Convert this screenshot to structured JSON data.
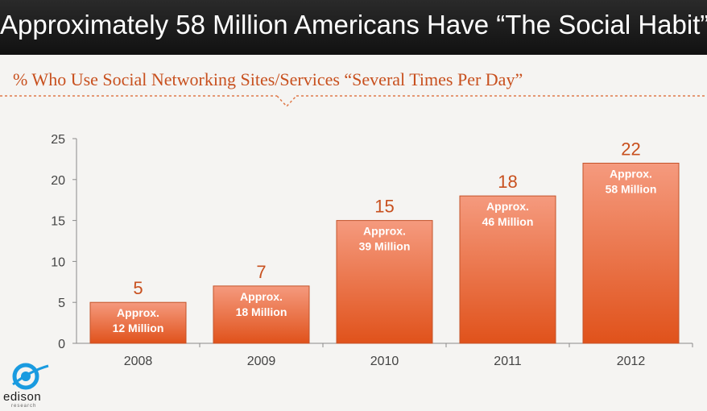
{
  "header": {
    "title": "Approximately 58 Million Americans Have “The Social Habit”"
  },
  "subtitle": "% Who Use Social Networking Sites/Services “Several Times Per Day”",
  "logo": {
    "name": "edison",
    "sub": "research"
  },
  "colors": {
    "bar_top": "#f59a7e",
    "bar_bottom": "#e0521b",
    "value_label": "#c8501e",
    "accent": "#e07a4a"
  },
  "chart_data": {
    "type": "bar",
    "categories": [
      "2008",
      "2009",
      "2010",
      "2011",
      "2012"
    ],
    "values": [
      5,
      7,
      15,
      18,
      22
    ],
    "bar_labels": [
      [
        "Approx.",
        "12 Million"
      ],
      [
        "Approx.",
        "18 Million"
      ],
      [
        "Approx.",
        "39 Million"
      ],
      [
        "Approx.",
        "46 Million"
      ],
      [
        "Approx.",
        "58 Million"
      ]
    ],
    "yticks": [
      0,
      5,
      10,
      15,
      20,
      25
    ],
    "ylim": [
      0,
      25
    ],
    "grid": false,
    "title": "% Who Use Social Networking Sites/Services “Several Times Per Day”"
  }
}
